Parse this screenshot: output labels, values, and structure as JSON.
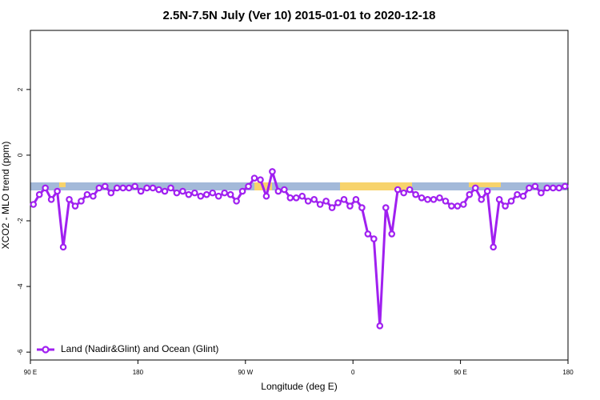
{
  "chart_data": {
    "type": "line",
    "title": "2.5N-7.5N July (Ver 10)   2015-01-01 to 2020-12-18",
    "x_label": "Longitude (deg E)",
    "y_label": "XCO2 - MLO trend (ppm)",
    "x": [
      92.5,
      97.5,
      102.5,
      107.5,
      112.5,
      117.5,
      122.5,
      127.5,
      132.5,
      137.5,
      142.5,
      147.5,
      152.5,
      157.5,
      162.5,
      167.5,
      172.5,
      177.5,
      182.5,
      187.5,
      192.5,
      197.5,
      202.5,
      207.5,
      212.5,
      217.5,
      222.5,
      227.5,
      232.5,
      237.5,
      242.5,
      247.5,
      252.5,
      257.5,
      262.5,
      267.5,
      272.5,
      277.5,
      282.5,
      287.5,
      292.5,
      297.5,
      302.5,
      307.5,
      312.5,
      317.5,
      322.5,
      327.5,
      332.5,
      337.5,
      342.5,
      347.5,
      352.5,
      357.5,
      362.5,
      367.5,
      372.5,
      377.5,
      382.5,
      387.5,
      392.5,
      397.5,
      402.5,
      407.5,
      412.5,
      417.5,
      422.5,
      427.5,
      432.5,
      437.5,
      442.5,
      447.5,
      452.5,
      457.5,
      462.5,
      467.5,
      472.5,
      477.5,
      482.5,
      487.5,
      492.5,
      497.5,
      502.5,
      507.5,
      512.5,
      517.5,
      522.5,
      527.5,
      532.5,
      537.5
    ],
    "series": [
      {
        "name": "Land (Nadir&Glint) and Ocean (Glint)",
        "color": "#a020f0",
        "values": [
          -1.5,
          -1.2,
          -1.0,
          -1.35,
          -1.1,
          -2.8,
          -1.35,
          -1.55,
          -1.4,
          -1.2,
          -1.25,
          -1.0,
          -0.95,
          -1.15,
          -1.0,
          -1.0,
          -1.0,
          -0.95,
          -1.1,
          -1.0,
          -1.0,
          -1.05,
          -1.1,
          -1.0,
          -1.15,
          -1.1,
          -1.2,
          -1.15,
          -1.25,
          -1.2,
          -1.15,
          -1.25,
          -1.15,
          -1.2,
          -1.4,
          -1.1,
          -0.95,
          -0.7,
          -0.75,
          -1.25,
          -0.5,
          -1.1,
          -1.05,
          -1.3,
          -1.3,
          -1.25,
          -1.4,
          -1.35,
          -1.5,
          -1.4,
          -1.6,
          -1.45,
          -1.35,
          -1.55,
          -1.35,
          -1.6,
          -2.4,
          -2.55,
          -5.2,
          -1.6,
          -2.4,
          -1.05,
          -1.15,
          -1.05,
          -1.2,
          -1.3,
          -1.35,
          -1.35,
          -1.3,
          -1.4,
          -1.55,
          -1.55,
          -1.5,
          -1.2,
          -1.0,
          -1.35,
          -1.1,
          -2.8,
          -1.35,
          -1.55,
          -1.4,
          -1.2,
          -1.25,
          -1.0,
          -0.95,
          -1.15,
          -1.0,
          -1.0,
          -1.0,
          -0.95
        ]
      }
    ],
    "xlim": [
      90,
      540
    ],
    "xticks": [
      {
        "value": 90,
        "label": "90 E"
      },
      180,
      {
        "value": 270,
        "label": "90 W"
      },
      {
        "value": 360,
        "label": "0"
      },
      {
        "value": 450,
        "label": "90 E"
      },
      {
        "value": 540,
        "label": "180"
      }
    ],
    "ylim": [
      -6.24,
      3.8
    ],
    "yticks": [
      -6,
      -4,
      -2,
      0,
      2
    ],
    "legend": "bottom-left"
  }
}
